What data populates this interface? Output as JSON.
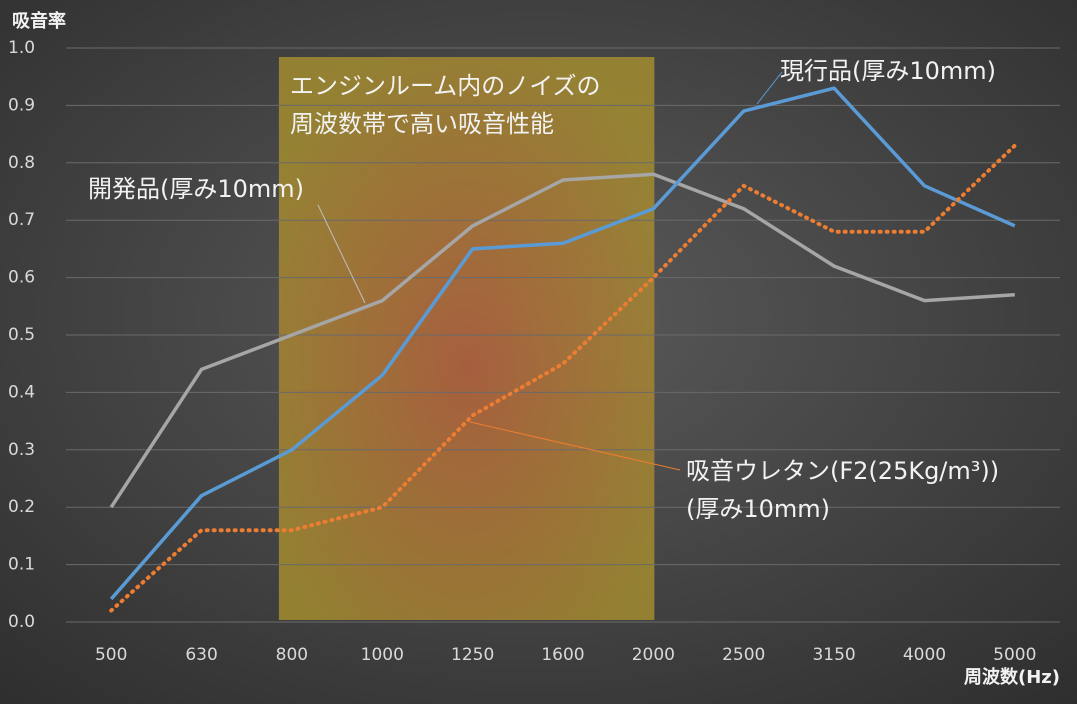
{
  "chart_data": {
    "type": "line",
    "y_label": "吸音率",
    "x_label": "周波数(Hz)",
    "categories": [
      "500",
      "630",
      "800",
      "1000",
      "1250",
      "1600",
      "2000",
      "2500",
      "3150",
      "4000",
      "5000"
    ],
    "ylim": [
      0,
      1
    ],
    "yticks": [
      {
        "value": 0,
        "label": "0.0"
      },
      0.1,
      0.2,
      0.3,
      0.4,
      0.5,
      0.6,
      0.7,
      0.8,
      0.9,
      {
        "value": 1,
        "label": "1.0"
      }
    ],
    "grid": true,
    "highlight": {
      "from": "800",
      "to": "2000",
      "text": [
        "エンジンルーム内のノイズの",
        "周波数帯で高い吸音性能"
      ]
    },
    "series": [
      {
        "label": [
          "開発品(厚み10mm)"
        ],
        "color": "#a6a6a6",
        "dash": false,
        "values": [
          0.2,
          0.44,
          0.5,
          0.56,
          0.69,
          0.77,
          0.78,
          0.72,
          0.62,
          0.56,
          0.57
        ]
      },
      {
        "label": [
          "現行品(厚み10mm)"
        ],
        "color": "#5b9bd5",
        "dash": false,
        "values": [
          0.04,
          0.22,
          0.3,
          0.43,
          0.65,
          0.66,
          0.72,
          0.89,
          0.93,
          0.76,
          0.69
        ]
      },
      {
        "label": [
          "吸音ウレタン(F2(25Kg/m³))",
          "(厚み10mm)"
        ],
        "color": "#ed7d31",
        "dash": true,
        "values": [
          0.02,
          0.16,
          0.16,
          0.2,
          0.36,
          0.45,
          0.6,
          0.76,
          0.68,
          0.68,
          0.83
        ]
      }
    ]
  }
}
